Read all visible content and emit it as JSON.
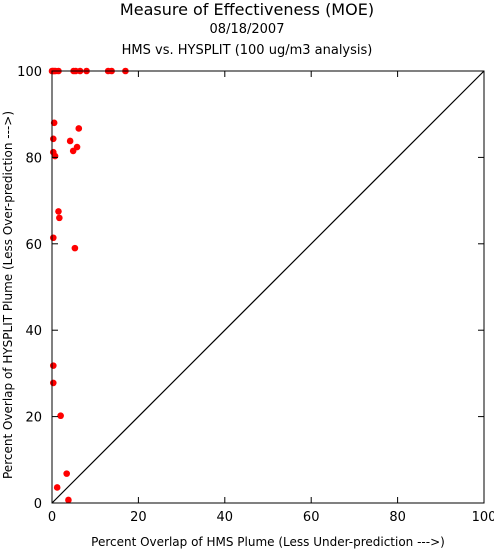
{
  "chart_data": {
    "type": "scatter",
    "title": "Measure of Effectiveness (MOE)",
    "subtitle": "08/18/2007",
    "subtitle2": "HMS vs. HYSPLIT  (100 ug/m3 analysis)",
    "xlabel": "Percent Overlap of HMS Plume (Less Under-prediction --->)",
    "ylabel": "Percent Overlap of HYSPLIT Plume (Less Over-prediction --->)",
    "xlim": [
      0,
      100
    ],
    "ylim": [
      0,
      100
    ],
    "xticks": [
      0,
      20,
      40,
      60,
      80,
      100
    ],
    "yticks": [
      0,
      20,
      40,
      60,
      80,
      100
    ],
    "grid": false,
    "point_color": "#ff0000",
    "reference_line": "y = x",
    "points": [
      {
        "x": 0.0,
        "y": 100.0
      },
      {
        "x": 0.2,
        "y": 100.0
      },
      {
        "x": 0.5,
        "y": 100.0
      },
      {
        "x": 0.8,
        "y": 100.0
      },
      {
        "x": 1.5,
        "y": 100.0
      },
      {
        "x": 5.0,
        "y": 100.0
      },
      {
        "x": 5.5,
        "y": 100.0
      },
      {
        "x": 6.5,
        "y": 100.0
      },
      {
        "x": 8.0,
        "y": 100.0
      },
      {
        "x": 13.0,
        "y": 100.0
      },
      {
        "x": 13.8,
        "y": 100.0
      },
      {
        "x": 17.0,
        "y": 100.0
      },
      {
        "x": 0.5,
        "y": 88.0
      },
      {
        "x": 6.2,
        "y": 86.7
      },
      {
        "x": 0.3,
        "y": 84.3
      },
      {
        "x": 4.2,
        "y": 83.8
      },
      {
        "x": 5.8,
        "y": 82.4
      },
      {
        "x": 4.9,
        "y": 81.5
      },
      {
        "x": 0.3,
        "y": 81.2
      },
      {
        "x": 0.7,
        "y": 80.3
      },
      {
        "x": 1.5,
        "y": 67.5
      },
      {
        "x": 1.7,
        "y": 66.0
      },
      {
        "x": 0.3,
        "y": 61.4
      },
      {
        "x": 5.3,
        "y": 59.0
      },
      {
        "x": 0.3,
        "y": 31.8
      },
      {
        "x": 0.3,
        "y": 27.8
      },
      {
        "x": 2.0,
        "y": 20.2
      },
      {
        "x": 3.4,
        "y": 6.8
      },
      {
        "x": 1.2,
        "y": 3.6
      },
      {
        "x": 3.8,
        "y": 0.7
      }
    ]
  }
}
